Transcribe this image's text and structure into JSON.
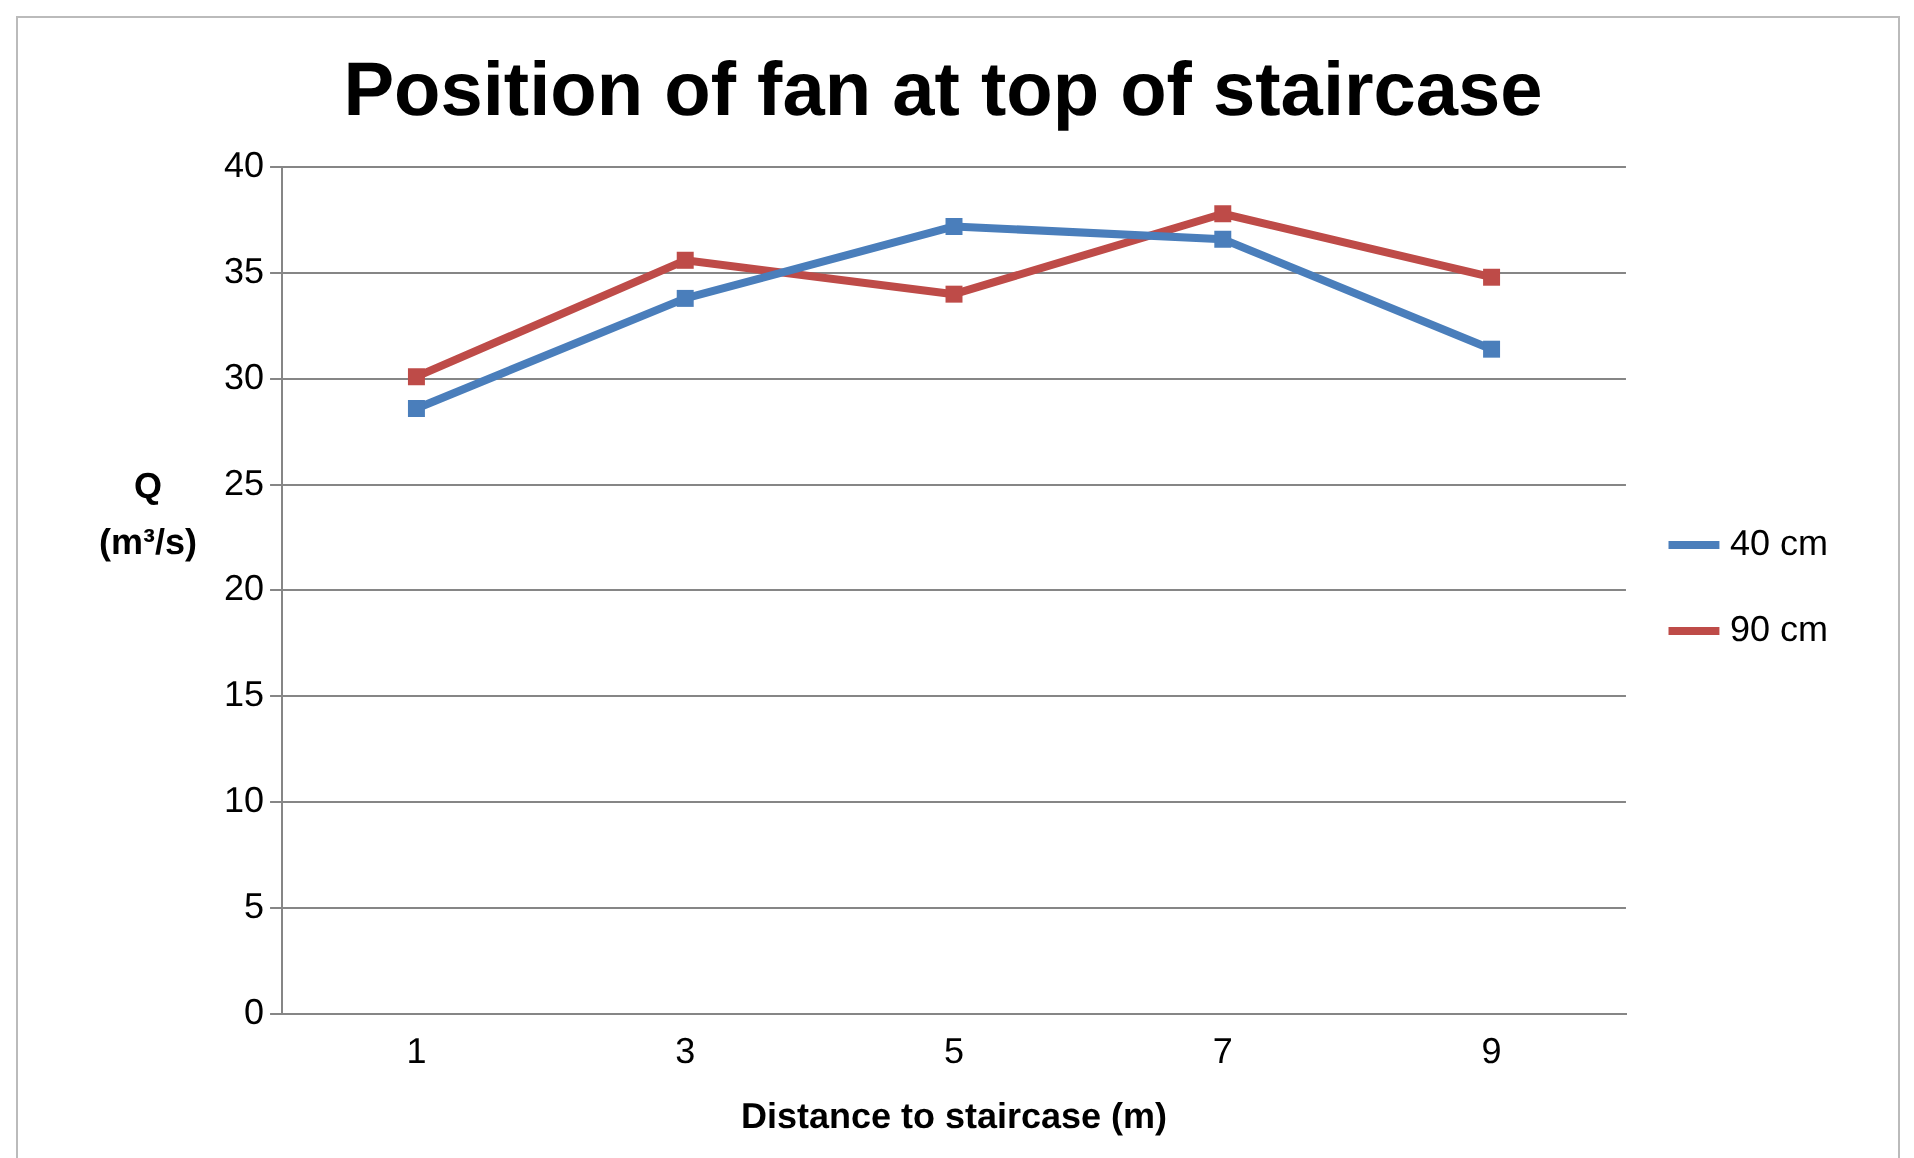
{
  "chart_data": {
    "type": "line",
    "title": "Position of fan at top of staircase",
    "xlabel": "Distance to staircase (m)",
    "ylabel": "Q (m³/s)",
    "categories": [
      "1",
      "3",
      "5",
      "7",
      "9"
    ],
    "series": [
      {
        "name": "40 cm",
        "color": "#4a7ebb",
        "values": [
          28.6,
          33.8,
          37.2,
          36.6,
          31.4
        ]
      },
      {
        "name": "90 cm",
        "color": "#be4b48",
        "values": [
          30.1,
          35.6,
          34.0,
          37.8,
          34.8
        ]
      }
    ],
    "ylim": [
      0,
      40
    ],
    "yticks": [
      0,
      5,
      10,
      15,
      20,
      25,
      30,
      35,
      40
    ],
    "grid": "y",
    "legend": "right",
    "marker": "square",
    "line_style": "solid"
  }
}
